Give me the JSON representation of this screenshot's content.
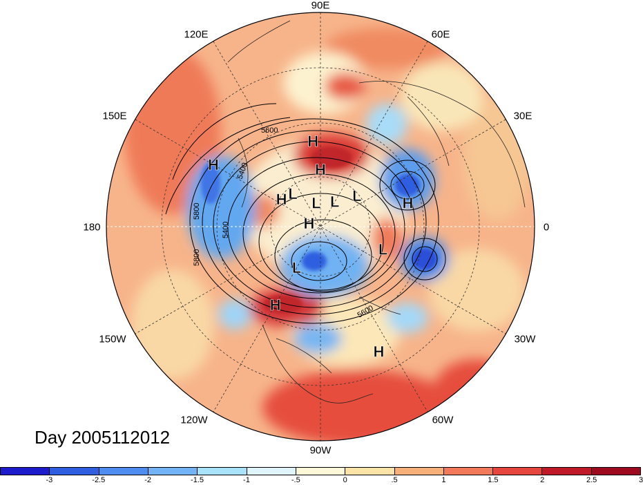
{
  "day_label": "Day 2005112012",
  "longitude_labels": [
    "90E",
    "60E",
    "30E",
    "0",
    "30W",
    "60W",
    "90W",
    "120W",
    "150W",
    "180",
    "150E",
    "120E"
  ],
  "colorbar": {
    "colors": [
      "#1c1ccc",
      "#2f5fe0",
      "#4f8ef0",
      "#72b4f6",
      "#a8e2fb",
      "#dff4fb",
      "#fdf8d8",
      "#fce4a8",
      "#f8b07a",
      "#f2795a",
      "#e6463e",
      "#c01a28",
      "#9e0a1e"
    ],
    "ticks": [
      "-3",
      "-2.5",
      "-2",
      "-1.5",
      "-1",
      "-.5",
      "0",
      ".5",
      "1",
      "1.5",
      "2",
      "2.5",
      "3"
    ]
  },
  "contour_labels": [
    "5600",
    "5400",
    "5800",
    "5400",
    "5800",
    "5600"
  ],
  "pressure_systems": [
    {
      "type": "L",
      "lon": 60,
      "lat": 78
    },
    {
      "type": "H",
      "lon": 90,
      "lat": 66
    },
    {
      "type": "H",
      "lon": 95,
      "lat": 54
    },
    {
      "type": "L",
      "lon": 130,
      "lat": 72
    },
    {
      "type": "H",
      "lon": 150,
      "lat": 38
    },
    {
      "type": "H",
      "lon": 145,
      "lat": 70
    },
    {
      "type": "L",
      "lon": 100,
      "lat": 80
    },
    {
      "type": "L",
      "lon": 40,
      "lat": 70
    },
    {
      "type": "H",
      "lon": 15,
      "lat": 52
    },
    {
      "type": "H",
      "lon": 165,
      "lat": 85
    },
    {
      "type": "L",
      "lon": -20,
      "lat": 62
    },
    {
      "type": "L",
      "lon": -120,
      "lat": 70
    },
    {
      "type": "H",
      "lon": -120,
      "lat": 52
    },
    {
      "type": "H",
      "lon": -65,
      "lat": 32
    }
  ]
}
